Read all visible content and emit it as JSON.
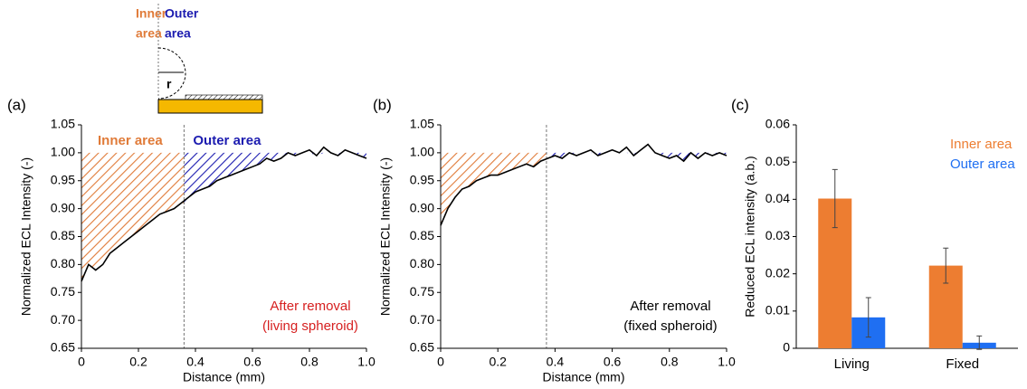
{
  "schematic": {
    "inner_label": [
      "Inner",
      "area"
    ],
    "outer_label": [
      "Outer",
      "area"
    ],
    "radius_label": "r"
  },
  "chart_data": [
    {
      "type": "line",
      "title": "(a)",
      "x_label": "Distance (mm)",
      "y_label": "Normalized ECL Intensity (-)",
      "x": [
        0,
        0.025,
        0.05,
        0.075,
        0.1,
        0.125,
        0.15,
        0.175,
        0.2,
        0.225,
        0.25,
        0.275,
        0.3,
        0.325,
        0.35,
        0.375,
        0.4,
        0.425,
        0.45,
        0.475,
        0.5,
        0.525,
        0.55,
        0.575,
        0.6,
        0.625,
        0.65,
        0.675,
        0.7,
        0.725,
        0.75,
        0.775,
        0.8,
        0.825,
        0.85,
        0.875,
        0.9,
        0.925,
        0.95,
        0.975,
        1
      ],
      "values": [
        0.77,
        0.8,
        0.79,
        0.8,
        0.82,
        0.83,
        0.84,
        0.85,
        0.86,
        0.87,
        0.88,
        0.89,
        0.895,
        0.9,
        0.91,
        0.92,
        0.93,
        0.935,
        0.94,
        0.95,
        0.955,
        0.96,
        0.965,
        0.97,
        0.975,
        0.98,
        0.99,
        0.985,
        0.99,
        1,
        0.995,
        1,
        1.005,
        0.995,
        1.01,
        1,
        0.995,
        1.005,
        1,
        0.995,
        0.99
      ],
      "color": "#000000",
      "reference": 1,
      "divider": 0.36,
      "area_labels": [
        "Inner area",
        "Outer area"
      ],
      "fill_colors": [
        "#e07b39",
        "#1c1cb0"
      ],
      "note": [
        "After removal",
        "(living spheroid)"
      ],
      "note_color": "#d62020",
      "xlim": [
        0,
        1
      ],
      "xticks": [
        0,
        0.2,
        0.4,
        0.6,
        0.8,
        {
          "value": 1,
          "label": "1.0"
        }
      ],
      "ylim": [
        0.65,
        1.05
      ],
      "yticks": [
        0.65,
        {
          "value": 0.7,
          "label": "0.70"
        },
        0.75,
        {
          "value": 0.8,
          "label": "0.80"
        },
        0.85,
        {
          "value": 0.9,
          "label": "0.90"
        },
        0.95,
        {
          "value": 1,
          "label": "1.00"
        },
        1.05
      ]
    },
    {
      "type": "line",
      "title": "(b)",
      "x_label": "Distance (mm)",
      "y_label": "Normalized ECL Intensity (-)",
      "x": [
        0,
        0.025,
        0.05,
        0.075,
        0.1,
        0.125,
        0.15,
        0.175,
        0.2,
        0.225,
        0.25,
        0.275,
        0.3,
        0.325,
        0.35,
        0.375,
        0.4,
        0.425,
        0.45,
        0.475,
        0.5,
        0.525,
        0.55,
        0.575,
        0.6,
        0.625,
        0.65,
        0.675,
        0.7,
        0.725,
        0.75,
        0.775,
        0.8,
        0.825,
        0.85,
        0.875,
        0.9,
        0.925,
        0.95,
        0.975,
        1
      ],
      "values": [
        0.87,
        0.9,
        0.92,
        0.935,
        0.94,
        0.95,
        0.955,
        0.96,
        0.96,
        0.965,
        0.97,
        0.975,
        0.98,
        0.975,
        0.985,
        0.99,
        0.995,
        0.99,
        1,
        0.995,
        1,
        1.005,
        0.995,
        1,
        1.005,
        1,
        1.01,
        0.995,
        1.005,
        1.015,
        1,
        0.995,
        0.99,
        0.995,
        0.985,
        1,
        0.99,
        1,
        0.995,
        1,
        0.995
      ],
      "color": "#000000",
      "reference": 1,
      "divider": 0.37,
      "fill_colors": [
        "#e07b39",
        "#1c1cb0"
      ],
      "note": [
        "After removal",
        "(fixed spheroid)"
      ],
      "note_color": "#000000",
      "xlim": [
        0,
        1
      ],
      "xticks": [
        0,
        0.2,
        0.4,
        0.6,
        0.8,
        {
          "value": 1,
          "label": "1.0"
        }
      ],
      "ylim": [
        0.65,
        1.05
      ],
      "yticks": [
        0.65,
        {
          "value": 0.7,
          "label": "0.70"
        },
        0.75,
        {
          "value": 0.8,
          "label": "0.80"
        },
        0.85,
        {
          "value": 0.9,
          "label": "0.90"
        },
        0.95,
        {
          "value": 1,
          "label": "1.00"
        },
        1.05
      ]
    },
    {
      "type": "bar",
      "title": "(c)",
      "y_label": "Reduced ECL intensity (a.b.)",
      "categories": [
        "Living",
        "Fixed"
      ],
      "series": [
        {
          "name": "Inner area",
          "color": "#ed7d31",
          "values": [
            0.0402,
            0.0222
          ],
          "errors": [
            0.0078,
            0.0047
          ]
        },
        {
          "name": "Outer area",
          "color": "#1f6ff2",
          "values": [
            0.0083,
            0.0015
          ],
          "errors": [
            0.0053,
            0.0018
          ]
        }
      ],
      "legend": "upper right",
      "ylim": [
        0,
        0.06
      ],
      "yticks": [
        0,
        0.01,
        0.02,
        0.03,
        0.04,
        0.05,
        0.06
      ]
    }
  ]
}
